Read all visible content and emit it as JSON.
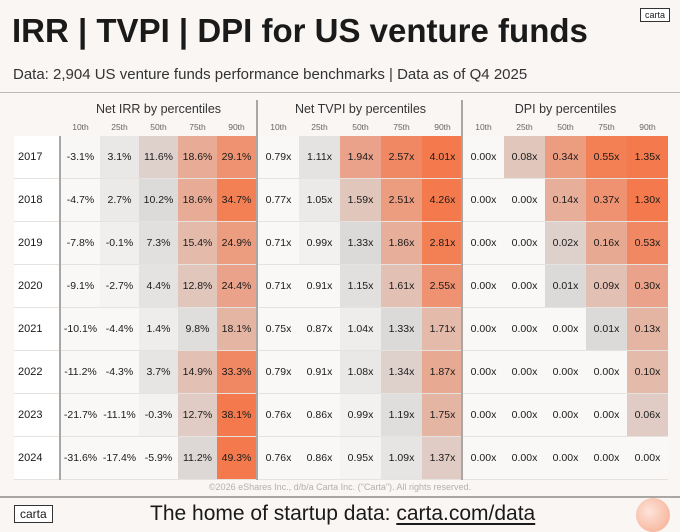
{
  "header": {
    "title": "IRR | TVPI | DPI for US venture funds",
    "subtitle": "Data: 2,904 US venture funds performance benchmarks | Data as of Q4 2025",
    "logo": "carta"
  },
  "colors": {
    "low": "#faf8f7",
    "mid": "#dcdad9",
    "high": "#f47a4e"
  },
  "chart_data": {
    "type": "heatmap",
    "rows": [
      "2017",
      "2018",
      "2019",
      "2020",
      "2021",
      "2022",
      "2023",
      "2024"
    ],
    "percentiles": [
      "10th",
      "25th",
      "50th",
      "75th",
      "90th"
    ],
    "groups": [
      {
        "title": "Net IRR by percentiles",
        "unit": "%",
        "values": [
          [
            -3.1,
            3.1,
            11.6,
            18.6,
            29.1
          ],
          [
            -4.7,
            2.7,
            10.2,
            18.6,
            34.7
          ],
          [
            -7.8,
            -0.1,
            7.3,
            15.4,
            24.9
          ],
          [
            -9.1,
            -2.7,
            4.4,
            12.8,
            24.4
          ],
          [
            -10.1,
            -4.4,
            1.4,
            9.8,
            18.1
          ],
          [
            -11.2,
            -4.3,
            3.7,
            14.9,
            33.3
          ],
          [
            -21.7,
            -11.1,
            -0.3,
            12.7,
            38.1
          ],
          [
            -31.6,
            -17.4,
            -5.9,
            11.2,
            49.3
          ]
        ],
        "labels": [
          [
            "-3.1%",
            "3.1%",
            "11.6%",
            "18.6%",
            "29.1%"
          ],
          [
            "-4.7%",
            "2.7%",
            "10.2%",
            "18.6%",
            "34.7%"
          ],
          [
            "-7.8%",
            "-0.1%",
            "7.3%",
            "15.4%",
            "24.9%"
          ],
          [
            "-9.1%",
            "-2.7%",
            "4.4%",
            "12.8%",
            "24.4%"
          ],
          [
            "-10.1%",
            "-4.4%",
            "1.4%",
            "9.8%",
            "18.1%"
          ],
          [
            "-11.2%",
            "-4.3%",
            "3.7%",
            "14.9%",
            "33.3%"
          ],
          [
            "-21.7%",
            "-11.1%",
            "-0.3%",
            "12.7%",
            "38.1%"
          ],
          [
            "-31.6%",
            "-17.4%",
            "-5.9%",
            "11.2%",
            "49.3%"
          ]
        ]
      },
      {
        "title": "Net TVPI by percentiles",
        "unit": "x",
        "values": [
          [
            0.79,
            1.11,
            1.94,
            2.57,
            4.01
          ],
          [
            0.77,
            1.05,
            1.59,
            2.51,
            4.26
          ],
          [
            0.71,
            0.99,
            1.33,
            1.86,
            2.81
          ],
          [
            0.71,
            0.91,
            1.15,
            1.61,
            2.55
          ],
          [
            0.75,
            0.87,
            1.04,
            1.33,
            1.71
          ],
          [
            0.79,
            0.91,
            1.08,
            1.34,
            1.87
          ],
          [
            0.76,
            0.86,
            0.99,
            1.19,
            1.75
          ],
          [
            0.76,
            0.86,
            0.95,
            1.09,
            1.37
          ]
        ],
        "labels": [
          [
            "0.79x",
            "1.11x",
            "1.94x",
            "2.57x",
            "4.01x"
          ],
          [
            "0.77x",
            "1.05x",
            "1.59x",
            "2.51x",
            "4.26x"
          ],
          [
            "0.71x",
            "0.99x",
            "1.33x",
            "1.86x",
            "2.81x"
          ],
          [
            "0.71x",
            "0.91x",
            "1.15x",
            "1.61x",
            "2.55x"
          ],
          [
            "0.75x",
            "0.87x",
            "1.04x",
            "1.33x",
            "1.71x"
          ],
          [
            "0.79x",
            "0.91x",
            "1.08x",
            "1.34x",
            "1.87x"
          ],
          [
            "0.76x",
            "0.86x",
            "0.99x",
            "1.19x",
            "1.75x"
          ],
          [
            "0.76x",
            "0.86x",
            "0.95x",
            "1.09x",
            "1.37x"
          ]
        ]
      },
      {
        "title": "DPI by percentiles",
        "unit": "x",
        "values": [
          [
            0.0,
            0.08,
            0.34,
            0.55,
            1.35
          ],
          [
            0.0,
            0.0,
            0.14,
            0.37,
            1.3
          ],
          [
            0.0,
            0.0,
            0.02,
            0.16,
            0.53
          ],
          [
            0.0,
            0.0,
            0.01,
            0.09,
            0.3
          ],
          [
            0.0,
            0.0,
            0.0,
            0.01,
            0.13
          ],
          [
            0.0,
            0.0,
            0.0,
            0.0,
            0.1
          ],
          [
            0.0,
            0.0,
            0.0,
            0.0,
            0.06
          ],
          [
            0.0,
            0.0,
            0.0,
            0.0,
            0.0
          ]
        ],
        "labels": [
          [
            "0.00x",
            "0.08x",
            "0.34x",
            "0.55x",
            "1.35x"
          ],
          [
            "0.00x",
            "0.00x",
            "0.14x",
            "0.37x",
            "1.30x"
          ],
          [
            "0.00x",
            "0.00x",
            "0.02x",
            "0.16x",
            "0.53x"
          ],
          [
            "0.00x",
            "0.00x",
            "0.01x",
            "0.09x",
            "0.30x"
          ],
          [
            "0.00x",
            "0.00x",
            "0.00x",
            "0.01x",
            "0.13x"
          ],
          [
            "0.00x",
            "0.00x",
            "0.00x",
            "0.00x",
            "0.10x"
          ],
          [
            "0.00x",
            "0.00x",
            "0.00x",
            "0.00x",
            "0.06x"
          ],
          [
            "0.00x",
            "0.00x",
            "0.00x",
            "0.00x",
            "0.00x"
          ]
        ]
      }
    ]
  },
  "footer": {
    "copyright": "©2026 eShares Inc., d/b/a Carta Inc. (\"Carta\"). All rights reserved.",
    "logo": "carta",
    "tagline": "The home of startup data: ",
    "link": "carta.com/data"
  }
}
